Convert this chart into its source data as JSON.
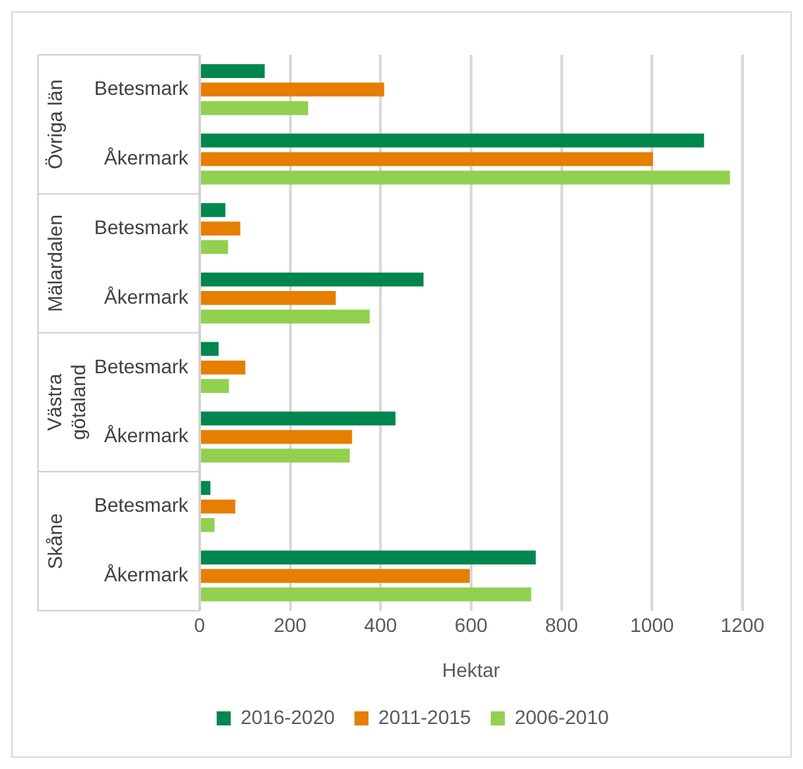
{
  "chart_data": {
    "type": "bar",
    "orientation": "horizontal",
    "xlabel": "Hektar",
    "categories": [
      "Betesmark",
      "Åkermark",
      "Betesmark",
      "Åkermark",
      "Betesmark",
      "Åkermark",
      "Betesmark",
      "Åkermark"
    ],
    "annotations": [
      "Övriga län",
      "Mälardalen",
      "Västra götaland",
      "Skåne"
    ],
    "series": [
      {
        "name": "2016-2020",
        "color": "#00864f",
        "values": [
          144,
          1115,
          57,
          495,
          42,
          433,
          24,
          743
        ]
      },
      {
        "name": "2011-2015",
        "color": "#e67e00",
        "values": [
          408,
          1002,
          90,
          301,
          101,
          337,
          79,
          597
        ]
      },
      {
        "name": "2006-2010",
        "color": "#92d050",
        "values": [
          240,
          1172,
          63,
          376,
          65,
          332,
          33,
          733
        ]
      }
    ],
    "xlim": [
      0,
      1200
    ],
    "xticks": [
      0,
      200,
      400,
      600,
      800,
      1000,
      1200
    ],
    "grid": "x",
    "legend": "bottom"
  }
}
